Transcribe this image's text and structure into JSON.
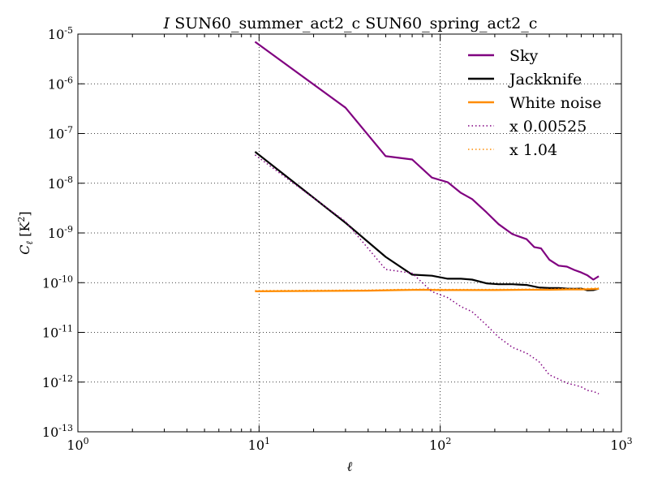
{
  "chart_data": {
    "type": "line",
    "title_italic": "I",
    "title": "SUN60_summer_act2_c SUN60_spring_act2_c",
    "xlabel": "ℓ",
    "ylabel": "C",
    "ylabel_sub": "ℓ",
    "ylabel_unit": "[K",
    "ylabel_unit_exp": "2",
    "ylabel_unit_end": "]",
    "xscale": "log",
    "yscale": "log",
    "xlim": [
      1,
      1000
    ],
    "ylim": [
      1e-13,
      1e-05
    ],
    "grid": true,
    "legend_position": "top-right",
    "x_ticks": [
      {
        "base": "10",
        "exp": "0",
        "value": 1
      },
      {
        "base": "10",
        "exp": "1",
        "value": 10
      },
      {
        "base": "10",
        "exp": "2",
        "value": 100
      },
      {
        "base": "10",
        "exp": "3",
        "value": 1000
      }
    ],
    "y_ticks": [
      {
        "base": "10",
        "exp": "-5",
        "value": 1e-05
      },
      {
        "base": "10",
        "exp": "-6",
        "value": 1e-06
      },
      {
        "base": "10",
        "exp": "-7",
        "value": 1e-07
      },
      {
        "base": "10",
        "exp": "-8",
        "value": 1e-08
      },
      {
        "base": "10",
        "exp": "-9",
        "value": 1e-09
      },
      {
        "base": "10",
        "exp": "-10",
        "value": 1e-10
      },
      {
        "base": "10",
        "exp": "-11",
        "value": 1e-11
      },
      {
        "base": "10",
        "exp": "-12",
        "value": 1e-12
      },
      {
        "base": "10",
        "exp": "-13",
        "value": 1e-13
      }
    ],
    "series": [
      {
        "name": "Sky",
        "color": "#800080",
        "style": "solid",
        "x": [
          9.5,
          30,
          50,
          70,
          90,
          110,
          130,
          150,
          180,
          210,
          250,
          300,
          330,
          360,
          400,
          450,
          500,
          550,
          600,
          650,
          700,
          750
        ],
        "y": [
          7e-06,
          3.3e-07,
          3.5e-08,
          3e-08,
          1.3e-08,
          1.05e-08,
          6.4e-09,
          4.8e-09,
          2.6e-09,
          1.5e-09,
          9.5e-10,
          7.5e-10,
          5.2e-10,
          4.9e-10,
          2.9e-10,
          2.2e-10,
          2.1e-10,
          1.8e-10,
          1.6e-10,
          1.4e-10,
          1.15e-10,
          1.35e-10
        ]
      },
      {
        "name": "Jackknife",
        "color": "#000000",
        "style": "solid",
        "x": [
          9.5,
          30,
          50,
          70,
          90,
          110,
          130,
          150,
          180,
          210,
          250,
          300,
          350,
          400,
          450,
          500,
          550,
          600,
          650,
          700,
          750
        ],
        "y": [
          4.3e-08,
          1.6e-09,
          3.3e-10,
          1.45e-10,
          1.38e-10,
          1.2e-10,
          1.2e-10,
          1.15e-10,
          9.7e-11,
          9.3e-11,
          9.3e-11,
          9e-11,
          8e-11,
          7.8e-11,
          7.8e-11,
          7.6e-11,
          7.5e-11,
          7.6e-11,
          7e-11,
          7.1e-11,
          7.6e-11
        ]
      },
      {
        "name": "White noise",
        "color": "#ff8c00",
        "style": "solid",
        "x": [
          9.5,
          20,
          40,
          60,
          80,
          100,
          150,
          200,
          300,
          400,
          500,
          600,
          750
        ],
        "y": [
          6.7e-11,
          6.8e-11,
          6.9e-11,
          7.1e-11,
          7.2e-11,
          7.1e-11,
          7.1e-11,
          7.1e-11,
          7.2e-11,
          7.2e-11,
          7.3e-11,
          7.3e-11,
          7.5e-11
        ]
      },
      {
        "name": "x 0.00525",
        "color": "#800080",
        "style": "dotted",
        "x": [
          9.5,
          30,
          50,
          70,
          90,
          110,
          130,
          150,
          180,
          210,
          250,
          300,
          350,
          400,
          450,
          500,
          550,
          600,
          650,
          700,
          750
        ],
        "y": [
          3.7e-08,
          1.7e-09,
          1.85e-10,
          1.55e-10,
          6.6e-11,
          5e-11,
          3.3e-11,
          2.6e-11,
          1.4e-11,
          8e-12,
          5e-12,
          3.8e-12,
          2.6e-12,
          1.4e-12,
          1.15e-12,
          9.5e-13,
          8.8e-13,
          8e-13,
          6.8e-13,
          6.5e-13,
          5.8e-13
        ]
      },
      {
        "name": "x 1.04",
        "color": "#ff8c00",
        "style": "dotted",
        "x": [
          9.5,
          20,
          40,
          60,
          80,
          100,
          150,
          200,
          300,
          400,
          500,
          600,
          750
        ],
        "y": [
          6.9e-11,
          7e-11,
          7.1e-11,
          7.3e-11,
          7.4e-11,
          7.3e-11,
          7.3e-11,
          7.3e-11,
          7.4e-11,
          7.4e-11,
          7.6e-11,
          7.6e-11,
          7.8e-11
        ]
      }
    ]
  }
}
